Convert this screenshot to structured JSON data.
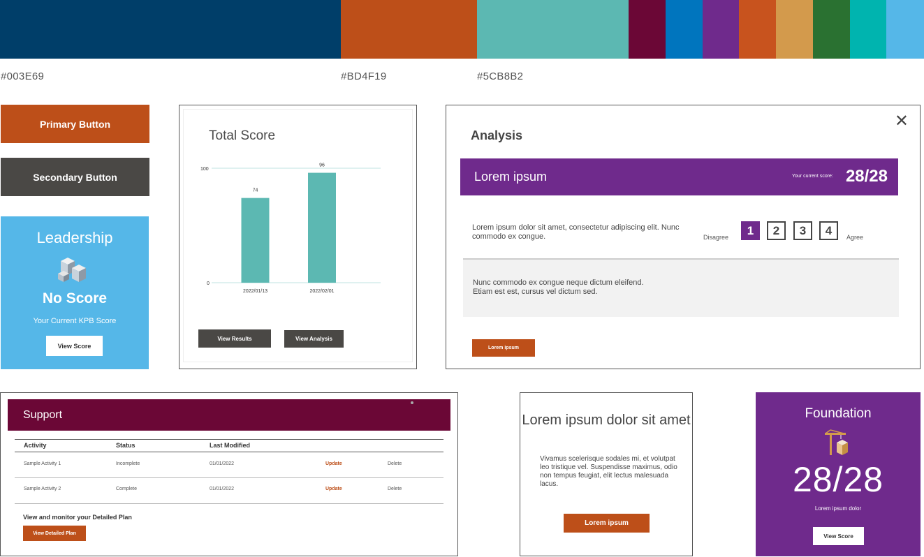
{
  "palette": {
    "primary_colors": [
      {
        "hex": "#003E69",
        "label": "#003E69"
      },
      {
        "hex": "#BD4F19",
        "label": "#BD4F19"
      },
      {
        "hex": "#5CB8B2",
        "label": "#5CB8B2"
      }
    ],
    "secondary_colors": [
      "#6B0736",
      "#0075BE",
      "#6F2A8C",
      "#C8531E",
      "#D39A4C",
      "#2A7131",
      "#00B4AF",
      "#55B7E8"
    ]
  },
  "buttons": {
    "primary_label": "Primary Button",
    "secondary_label": "Secondary Button"
  },
  "leadership_card": {
    "title": "Leadership",
    "icon": "buildings-icon",
    "score_text": "No Score",
    "subtitle": "Your Current KPB Score",
    "button_label": "View Score"
  },
  "total_score_card": {
    "title": "Total Score",
    "view_results_label": "View Results",
    "view_analysis_label": "View Analysis"
  },
  "chart_data": {
    "type": "bar",
    "title": "Total Score",
    "categories": [
      "2022/01/13",
      "2022/02/01"
    ],
    "values": [
      74,
      96
    ],
    "ylim": [
      0,
      100
    ],
    "ytick_labels": [
      "0",
      "100"
    ],
    "data_labels": [
      "74",
      "96"
    ],
    "grid": true,
    "bar_color": "#5CB8B2"
  },
  "analysis_modal": {
    "title": "Analysis",
    "close_icon": "close-icon",
    "band_label": "Lorem ipsum",
    "band_small_text": "Your current score:",
    "band_score": "28/28",
    "question": "Lorem ipsum dolor sit amet, consectetur adipiscing elit. Nunc commodo ex congue.",
    "scale_low_label": "Disagree",
    "scale_high_label": "Agree",
    "options": [
      "1",
      "2",
      "3",
      "4"
    ],
    "selected_option": "1",
    "note": "Nunc commodo ex congue neque dictum eleifend. Etiam est est, cursus vel dictum sed.",
    "button_label": "Lorem ipsum"
  },
  "support_table": {
    "title": "Support",
    "columns": [
      "Activity",
      "Status",
      "Last Modified"
    ],
    "rows": [
      {
        "activity": "Sample Activity 1",
        "status": "Incomplete",
        "modified": "01/01/2022",
        "update": "Update",
        "delete": "Delete"
      },
      {
        "activity": "Sample Activity 2",
        "status": "Complete",
        "modified": "01/01/2022",
        "update": "Update",
        "delete": "Delete"
      }
    ],
    "footer_text": "View and monitor your Detailed Plan",
    "button_label": "View Detailed Plan"
  },
  "lorem_card": {
    "title": "Lorem ipsum dolor sit amet",
    "body": "Vivamus scelerisque sodales mi, et volutpat leo tristique vel. Suspendisse maximus, odio non tempus feugiat, elit lectus malesuada lacus.",
    "button_label": "Lorem ipsum"
  },
  "foundation_card": {
    "title": "Foundation",
    "icon": "crane-icon",
    "score": "28/28",
    "subtitle": "Lorem ipsum dolor",
    "button_label": "View Score"
  }
}
